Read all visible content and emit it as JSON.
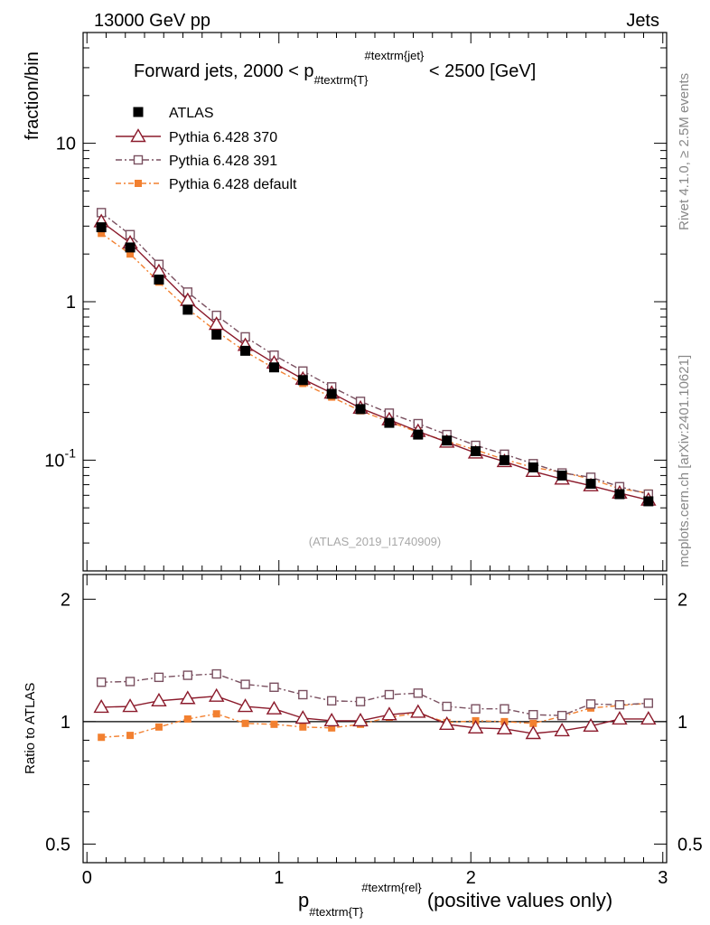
{
  "header": {
    "left": "13000 GeV pp",
    "right": "Jets"
  },
  "side": {
    "rivet": "Rivet 4.1.0, ≥ 2.5M events",
    "mcplots": "mcplots.cern.ch [arXiv:2401.10621]"
  },
  "chart_data": [
    {
      "type": "line",
      "title": "Forward jets, 2000 < p_{#textrm{T}}^{#textrm{jet}} < 2500 [GeV]",
      "title_parts": {
        "pre": "Forward jets, 2000 < p",
        "sub": "#textrm{T}",
        "sup": "#textrm{jet}",
        "post": " < 2500 [GeV]"
      },
      "ylabel": "fraction/bin",
      "yscale": "log",
      "ylim": [
        0.02,
        50
      ],
      "xlim": [
        -0.02,
        3.02
      ],
      "yticks": [
        {
          "v": 10,
          "label": "10"
        },
        {
          "v": 1,
          "label": "1"
        },
        {
          "v": 0.1,
          "label": "10^{-1}"
        }
      ],
      "watermark": "(ATLAS_2019_I1740909)",
      "x": [
        0.075,
        0.225,
        0.375,
        0.525,
        0.675,
        0.825,
        0.975,
        1.125,
        1.275,
        1.425,
        1.575,
        1.725,
        1.875,
        2.025,
        2.175,
        2.325,
        2.475,
        2.625,
        2.775,
        2.925
      ],
      "series": [
        {
          "name": "ATLAS",
          "style": "data",
          "color": "#000000",
          "values": [
            2.95,
            2.2,
            1.38,
            0.89,
            0.62,
            0.49,
            0.385,
            0.32,
            0.262,
            0.21,
            0.172,
            0.145,
            0.133,
            0.114,
            0.1,
            0.09,
            0.08,
            0.071,
            0.061,
            0.055
          ]
        },
        {
          "name": "Pythia 6.428 370",
          "style": "triangle",
          "color": "#8b1a2b",
          "values": [
            3.2,
            2.35,
            1.55,
            1.02,
            0.72,
            0.53,
            0.41,
            0.325,
            0.265,
            0.213,
            0.18,
            0.152,
            0.13,
            0.111,
            0.098,
            0.085,
            0.076,
            0.069,
            0.062,
            0.056
          ]
        },
        {
          "name": "Pythia 6.428 391",
          "style": "square-open",
          "color": "#7a5060",
          "values": [
            3.65,
            2.65,
            1.72,
            1.15,
            0.82,
            0.6,
            0.46,
            0.365,
            0.29,
            0.235,
            0.198,
            0.17,
            0.145,
            0.124,
            0.109,
            0.095,
            0.083,
            0.078,
            0.068,
            0.061
          ]
        },
        {
          "name": "Pythia 6.428 default",
          "style": "square-filled",
          "color": "#f28030",
          "values": [
            2.7,
            2.0,
            1.33,
            0.9,
            0.65,
            0.485,
            0.38,
            0.305,
            0.25,
            0.205,
            0.175,
            0.15,
            0.132,
            0.116,
            0.101,
            0.09,
            0.084,
            0.076,
            0.066,
            0.062
          ]
        }
      ]
    },
    {
      "type": "line",
      "ylabel": "Ratio to ATLAS",
      "yscale": "log",
      "ylim": [
        0.45,
        2.3
      ],
      "xlim": [
        -0.02,
        3.02
      ],
      "yticks": [
        {
          "v": 2,
          "label": "2"
        },
        {
          "v": 1,
          "label": "1"
        },
        {
          "v": 0.5,
          "label": "0.5"
        }
      ],
      "xticks": [
        {
          "v": 0,
          "label": "0"
        },
        {
          "v": 1,
          "label": "1"
        },
        {
          "v": 2,
          "label": "2"
        },
        {
          "v": 3,
          "label": "3"
        }
      ],
      "xlabel_parts": {
        "pre": "p",
        "sub": "#textrm{T}",
        "sup": "#textrm{rel}",
        "post": " (positive values only)"
      },
      "xlabel": "p_{#textrm{T}}^{#textrm{rel}} (positive values only)",
      "x": [
        0.075,
        0.225,
        0.375,
        0.525,
        0.675,
        0.825,
        0.975,
        1.125,
        1.275,
        1.425,
        1.575,
        1.725,
        1.875,
        2.025,
        2.175,
        2.325,
        2.475,
        2.625,
        2.775,
        2.925
      ],
      "series": [
        {
          "name": "Pythia 6.428 370",
          "style": "triangle",
          "color": "#8b1a2b",
          "values": [
            1.085,
            1.09,
            1.125,
            1.14,
            1.155,
            1.09,
            1.075,
            1.02,
            1.005,
            1.005,
            1.04,
            1.055,
            0.985,
            0.965,
            0.96,
            0.935,
            0.95,
            0.975,
            1.015,
            1.015
          ]
        },
        {
          "name": "Pythia 6.428 391",
          "style": "square-open",
          "color": "#7a5060",
          "values": [
            1.25,
            1.255,
            1.285,
            1.3,
            1.31,
            1.235,
            1.215,
            1.165,
            1.125,
            1.12,
            1.165,
            1.175,
            1.09,
            1.075,
            1.075,
            1.04,
            1.035,
            1.105,
            1.1,
            1.11
          ]
        },
        {
          "name": "Pythia 6.428 default",
          "style": "square-filled",
          "color": "#f28030",
          "values": [
            0.915,
            0.925,
            0.97,
            1.015,
            1.045,
            0.99,
            0.985,
            0.97,
            0.965,
            0.985,
            1.025,
            1.05,
            0.995,
            1.005,
            1.0,
            0.99,
            1.03,
            1.08,
            1.095,
            1.11
          ]
        }
      ]
    }
  ]
}
